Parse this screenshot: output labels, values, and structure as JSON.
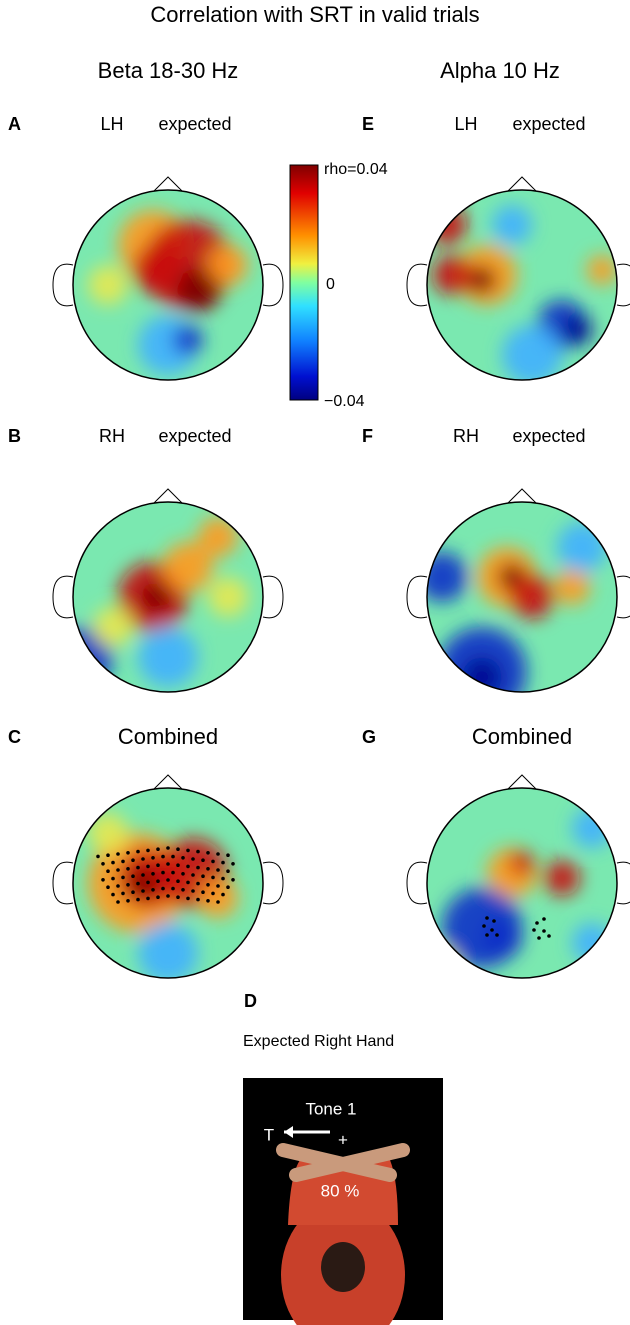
{
  "title": "Correlation with SRT in valid trials",
  "columns": [
    "Beta 18-30 Hz",
    "Alpha 10 Hz"
  ],
  "panels": [
    {
      "letter": "A",
      "hemisphere": "LH",
      "condition": "expected"
    },
    {
      "letter": "B",
      "hemisphere": "RH",
      "condition": "expected"
    },
    {
      "letter": "C",
      "label": "Combined"
    },
    {
      "letter": "E",
      "hemisphere": "LH",
      "condition": "expected"
    },
    {
      "letter": "F",
      "hemisphere": "RH",
      "condition": "expected"
    },
    {
      "letter": "G",
      "label": "Combined"
    }
  ],
  "colorbar": {
    "max_label": "rho=0.04",
    "mid_label": "0",
    "min_label": "−0.04"
  },
  "panel_d": {
    "letter": "D",
    "caption": "Expected Right Hand",
    "tone": "Tone 1",
    "target": "T",
    "fixation": "+",
    "probability": "80 %"
  }
}
